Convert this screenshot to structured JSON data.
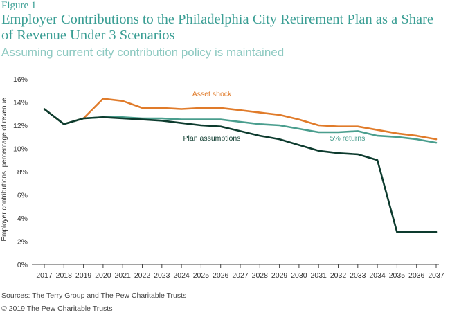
{
  "figure_label": "Figure 1",
  "title": "Employer Contributions to the Philadelphia City Retirement Plan as a Share of Revenue Under 3 Scenarios",
  "subtitle": "Assuming current city contribution policy is maintained",
  "source": "Sources: The Terry Group and The Pew Charitable Trusts",
  "copyright": "© 2019 The Pew Charitable Trusts",
  "colors": {
    "asset_shock": "#e07b2a",
    "returns_5": "#4a9e8e",
    "plan_assumptions": "#0d3b2e",
    "title": "#3a9e94",
    "axis": "#333333"
  },
  "chart_data": {
    "type": "line",
    "title": "Employer Contributions to the Philadelphia City Retirement Plan as a Share of Revenue Under 3 Scenarios",
    "ylabel": "Employer contributions, percentage of revenue",
    "xlabel": "",
    "ylim": [
      0,
      16
    ],
    "yticks": [
      "0%",
      "2%",
      "4%",
      "6%",
      "8%",
      "10%",
      "12%",
      "14%",
      "16%"
    ],
    "grid": false,
    "x": [
      "2017",
      "2018",
      "2019",
      "2020",
      "2021",
      "2022",
      "2023",
      "2024",
      "2025",
      "2026",
      "2027",
      "2028",
      "2029",
      "2030",
      "2031",
      "2032",
      "2033",
      "2034",
      "2035",
      "2036",
      "2037"
    ],
    "series": [
      {
        "name": "Asset shock",
        "color_key": "asset_shock",
        "values": [
          13.4,
          12.1,
          12.6,
          14.3,
          14.1,
          13.5,
          13.5,
          13.4,
          13.5,
          13.5,
          13.3,
          13.1,
          12.9,
          12.5,
          12.0,
          11.9,
          11.9,
          11.6,
          11.3,
          11.1,
          10.8
        ]
      },
      {
        "name": "5% returns",
        "color_key": "returns_5",
        "values": [
          13.4,
          12.1,
          12.6,
          12.7,
          12.7,
          12.6,
          12.6,
          12.5,
          12.5,
          12.5,
          12.3,
          12.1,
          12.0,
          11.7,
          11.4,
          11.4,
          11.5,
          11.1,
          11.0,
          10.8,
          10.5
        ]
      },
      {
        "name": "Plan assumptions",
        "color_key": "plan_assumptions",
        "values": [
          13.4,
          12.1,
          12.6,
          12.7,
          12.6,
          12.5,
          12.4,
          12.2,
          12.0,
          11.9,
          11.5,
          11.1,
          10.8,
          10.3,
          9.8,
          9.6,
          9.5,
          9.0,
          2.8,
          2.8,
          2.8
        ]
      }
    ]
  }
}
